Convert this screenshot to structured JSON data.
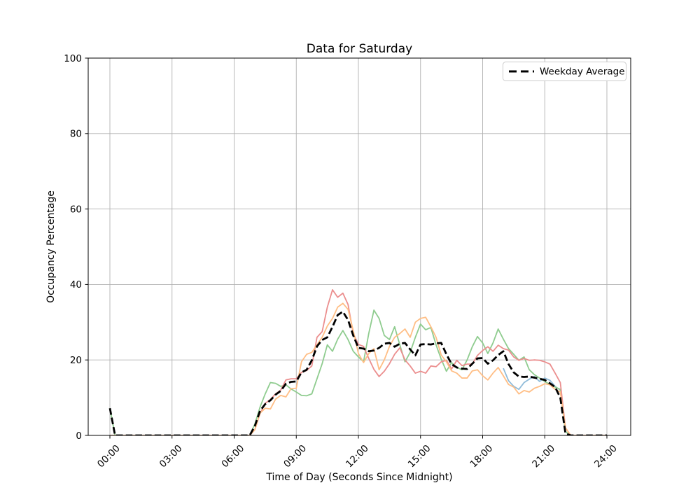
{
  "figure": {
    "title": "Data for Saturday",
    "xlabel": "Time of Day (Seconds Since Midnight)",
    "ylabel": "Occupancy Percentage"
  },
  "legend": {
    "position": "upper right",
    "items": [
      {
        "label": "Weekday Average",
        "color": "#000000",
        "dashed": true
      }
    ]
  },
  "chart_data": {
    "type": "line",
    "title": "Data for Saturday",
    "xlabel": "Time of Day (Seconds Since Midnight)",
    "ylabel": "Occupancy Percentage",
    "grid": true,
    "grid_color": "#b0b0b0",
    "ylim": [
      0,
      100
    ],
    "xlim_hours": [
      -1.05,
      25.15
    ],
    "legend_position": "upper right",
    "x": {
      "unit": "hours",
      "start": 0,
      "step": 0.25,
      "count": 97
    },
    "xticks": {
      "hours": [
        0,
        3,
        6,
        9,
        12,
        15,
        18,
        21,
        24
      ],
      "labels": [
        "00:00",
        "03:00",
        "06:00",
        "09:00",
        "12:00",
        "15:00",
        "18:00",
        "21:00",
        "24:00"
      ],
      "rotation_deg": 45
    },
    "yticks": [
      0,
      20,
      40,
      60,
      80,
      100
    ],
    "series": [
      {
        "name": "series-blue",
        "color": "#8fbbd9",
        "dashed": false,
        "width": 1.8,
        "values": [
          null,
          null,
          null,
          null,
          null,
          null,
          null,
          null,
          null,
          null,
          null,
          null,
          null,
          null,
          null,
          null,
          null,
          null,
          null,
          null,
          null,
          null,
          null,
          null,
          null,
          null,
          null,
          null,
          null,
          null,
          null,
          null,
          null,
          null,
          null,
          null,
          null,
          null,
          null,
          null,
          null,
          null,
          null,
          null,
          null,
          null,
          null,
          null,
          null,
          null,
          null,
          null,
          null,
          null,
          null,
          null,
          null,
          null,
          null,
          null,
          null,
          null,
          null,
          null,
          null,
          null,
          null,
          null,
          null,
          null,
          null,
          null,
          null,
          null,
          null,
          null,
          17.8,
          14.5,
          13,
          12.2,
          14,
          14.9,
          15.6,
          14.3,
          15.2,
          14.6,
          13,
          12,
          1,
          0,
          0,
          0,
          0,
          0,
          0,
          0,
          0
        ]
      },
      {
        "name": "series-green",
        "color": "#8fcc8f",
        "dashed": false,
        "width": 1.8,
        "values": [
          7.2,
          0,
          0,
          0,
          0,
          0,
          0,
          0,
          0,
          0,
          0,
          0,
          0,
          0,
          0,
          0,
          0,
          0,
          0,
          0,
          0,
          0,
          0,
          0,
          0,
          0,
          0,
          0,
          3,
          7.5,
          11,
          14,
          13.8,
          13,
          13.4,
          12.3,
          11.5,
          10.6,
          10.5,
          11,
          15,
          19,
          24,
          22.3,
          25.5,
          27.8,
          25.4,
          22.3,
          20.8,
          19.5,
          27,
          33.2,
          31,
          26.5,
          25.4,
          28.8,
          24,
          19.5,
          22,
          26,
          29.5,
          28,
          28.6,
          24,
          20.2,
          17,
          19.3,
          18,
          17.4,
          20,
          23.5,
          26.2,
          24.5,
          21.7,
          24.5,
          28.2,
          25.5,
          23,
          21.5,
          19.9,
          20.8,
          17.4,
          16.1,
          15.2,
          14.3,
          13.5,
          12.8,
          12.2,
          1,
          0,
          0,
          0,
          0,
          0,
          0,
          0,
          0
        ]
      },
      {
        "name": "series-red",
        "color": "#eb8e8e",
        "dashed": false,
        "width": 1.8,
        "values": [
          0,
          0,
          0,
          0,
          0,
          0,
          0,
          0,
          0,
          0,
          0,
          0,
          0,
          0,
          0,
          0,
          0,
          0,
          0,
          0,
          0,
          0,
          0,
          0,
          0,
          0,
          0,
          0,
          1.5,
          5.8,
          8.5,
          9.5,
          11,
          12,
          14.7,
          15,
          15,
          16.7,
          17.2,
          18.4,
          26,
          27.5,
          34,
          38.6,
          36.6,
          37.7,
          34.7,
          27,
          24.1,
          23.6,
          20.4,
          17.5,
          15.6,
          17,
          19,
          21.5,
          23.2,
          20,
          18.4,
          16.5,
          17,
          16.5,
          18.4,
          18.2,
          19.5,
          19.9,
          17.6,
          19.9,
          18.5,
          18.9,
          18.9,
          21.2,
          22.5,
          23.5,
          22.3,
          23.9,
          23,
          22.6,
          20.8,
          19.9,
          20.4,
          19.9,
          20,
          19.9,
          19.5,
          18.9,
          16.5,
          14,
          2,
          0,
          0,
          0,
          0,
          0,
          0,
          0,
          0
        ]
      },
      {
        "name": "series-orange",
        "color": "#ffbe85",
        "dashed": false,
        "width": 1.8,
        "values": [
          0,
          0,
          0,
          0,
          0,
          0,
          0,
          0,
          0,
          0,
          0,
          0,
          0,
          0,
          0,
          0,
          0,
          0,
          0,
          0,
          0,
          0,
          0,
          0,
          0,
          0,
          0,
          0,
          1.5,
          5.9,
          7.2,
          7,
          9.6,
          10.6,
          10.2,
          12.4,
          12.5,
          19.5,
          21.5,
          22,
          24,
          26,
          29,
          31,
          34,
          35,
          33.4,
          27.8,
          21.7,
          19.3,
          21.7,
          23,
          17.4,
          20,
          23.6,
          26,
          27,
          28.2,
          26,
          30,
          31,
          31.3,
          28.8,
          26,
          21.3,
          19.5,
          17.1,
          16.5,
          15.2,
          15.2,
          17.1,
          17.4,
          15.8,
          14.7,
          16.5,
          18,
          15.8,
          13.5,
          12.8,
          11,
          11.9,
          11.5,
          12.5,
          13,
          13.7,
          13.4,
          12.2,
          11.5,
          2,
          0,
          0,
          0,
          0,
          0,
          0,
          0,
          0
        ]
      },
      {
        "name": "weekday-average",
        "color": "#000000",
        "dashed": true,
        "width": 2.8,
        "legend": "Weekday Average",
        "values": [
          7.2,
          0,
          0,
          0,
          0,
          0,
          0,
          0,
          0,
          0,
          0,
          0,
          0,
          0,
          0,
          0,
          0,
          0,
          0,
          0,
          0,
          0,
          0,
          0,
          0,
          0,
          0,
          0,
          2.5,
          6.5,
          8.3,
          9.3,
          10.8,
          11.8,
          13.7,
          14.2,
          14.3,
          16.7,
          17.4,
          19.9,
          23.6,
          25.3,
          26,
          28.8,
          31.9,
          32.8,
          30.6,
          26.5,
          23.2,
          23,
          22.3,
          22.5,
          23.2,
          24.3,
          24.5,
          23.5,
          24.3,
          24.5,
          22.8,
          21.2,
          24.1,
          24.2,
          24.1,
          24.4,
          24.5,
          21.5,
          18.9,
          18,
          17.7,
          17.6,
          19,
          20.4,
          20.5,
          19,
          19.9,
          21.3,
          22.3,
          18.9,
          16.7,
          15.6,
          15.5,
          15.6,
          15.3,
          15,
          14.7,
          13.8,
          12.8,
          10,
          0.5,
          0,
          0,
          0,
          0,
          0,
          0,
          0,
          0
        ]
      }
    ]
  }
}
